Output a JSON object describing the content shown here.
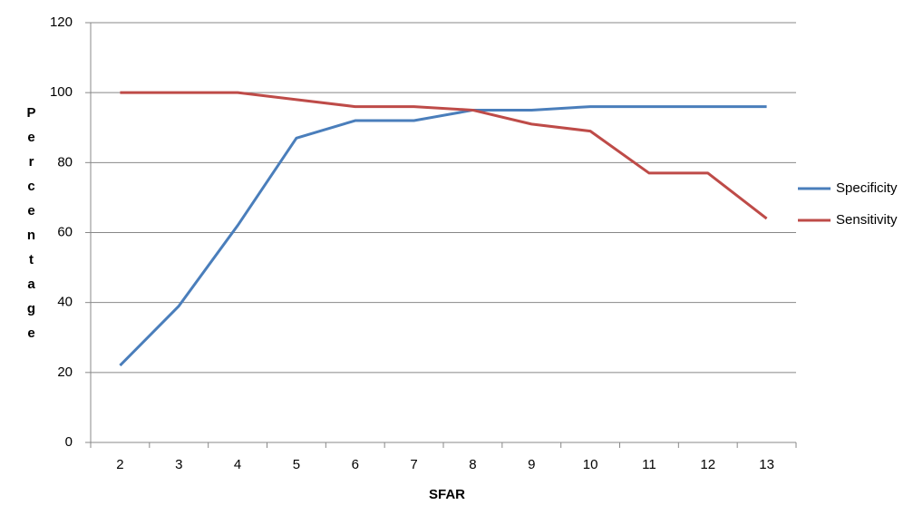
{
  "chart_data": {
    "type": "line",
    "x_label": "SFAR",
    "y_label": "Percentage",
    "categories": [
      "2",
      "3",
      "4",
      "5",
      "6",
      "7",
      "8",
      "9",
      "10",
      "11",
      "12",
      "13"
    ],
    "series": [
      {
        "name": "Specificity",
        "color": "#4a7ebb",
        "values": [
          22,
          39,
          62,
          87,
          92,
          92,
          95,
          95,
          96,
          96,
          96,
          96
        ]
      },
      {
        "name": "Sensitivity",
        "color": "#be4b48",
        "values": [
          100,
          100,
          100,
          98,
          96,
          96,
          95,
          91,
          89,
          77,
          77,
          64
        ]
      }
    ],
    "ylim": [
      0,
      120
    ],
    "yticks": [
      0,
      20,
      40,
      60,
      80,
      100,
      120
    ],
    "grid": true,
    "legend": "right"
  }
}
